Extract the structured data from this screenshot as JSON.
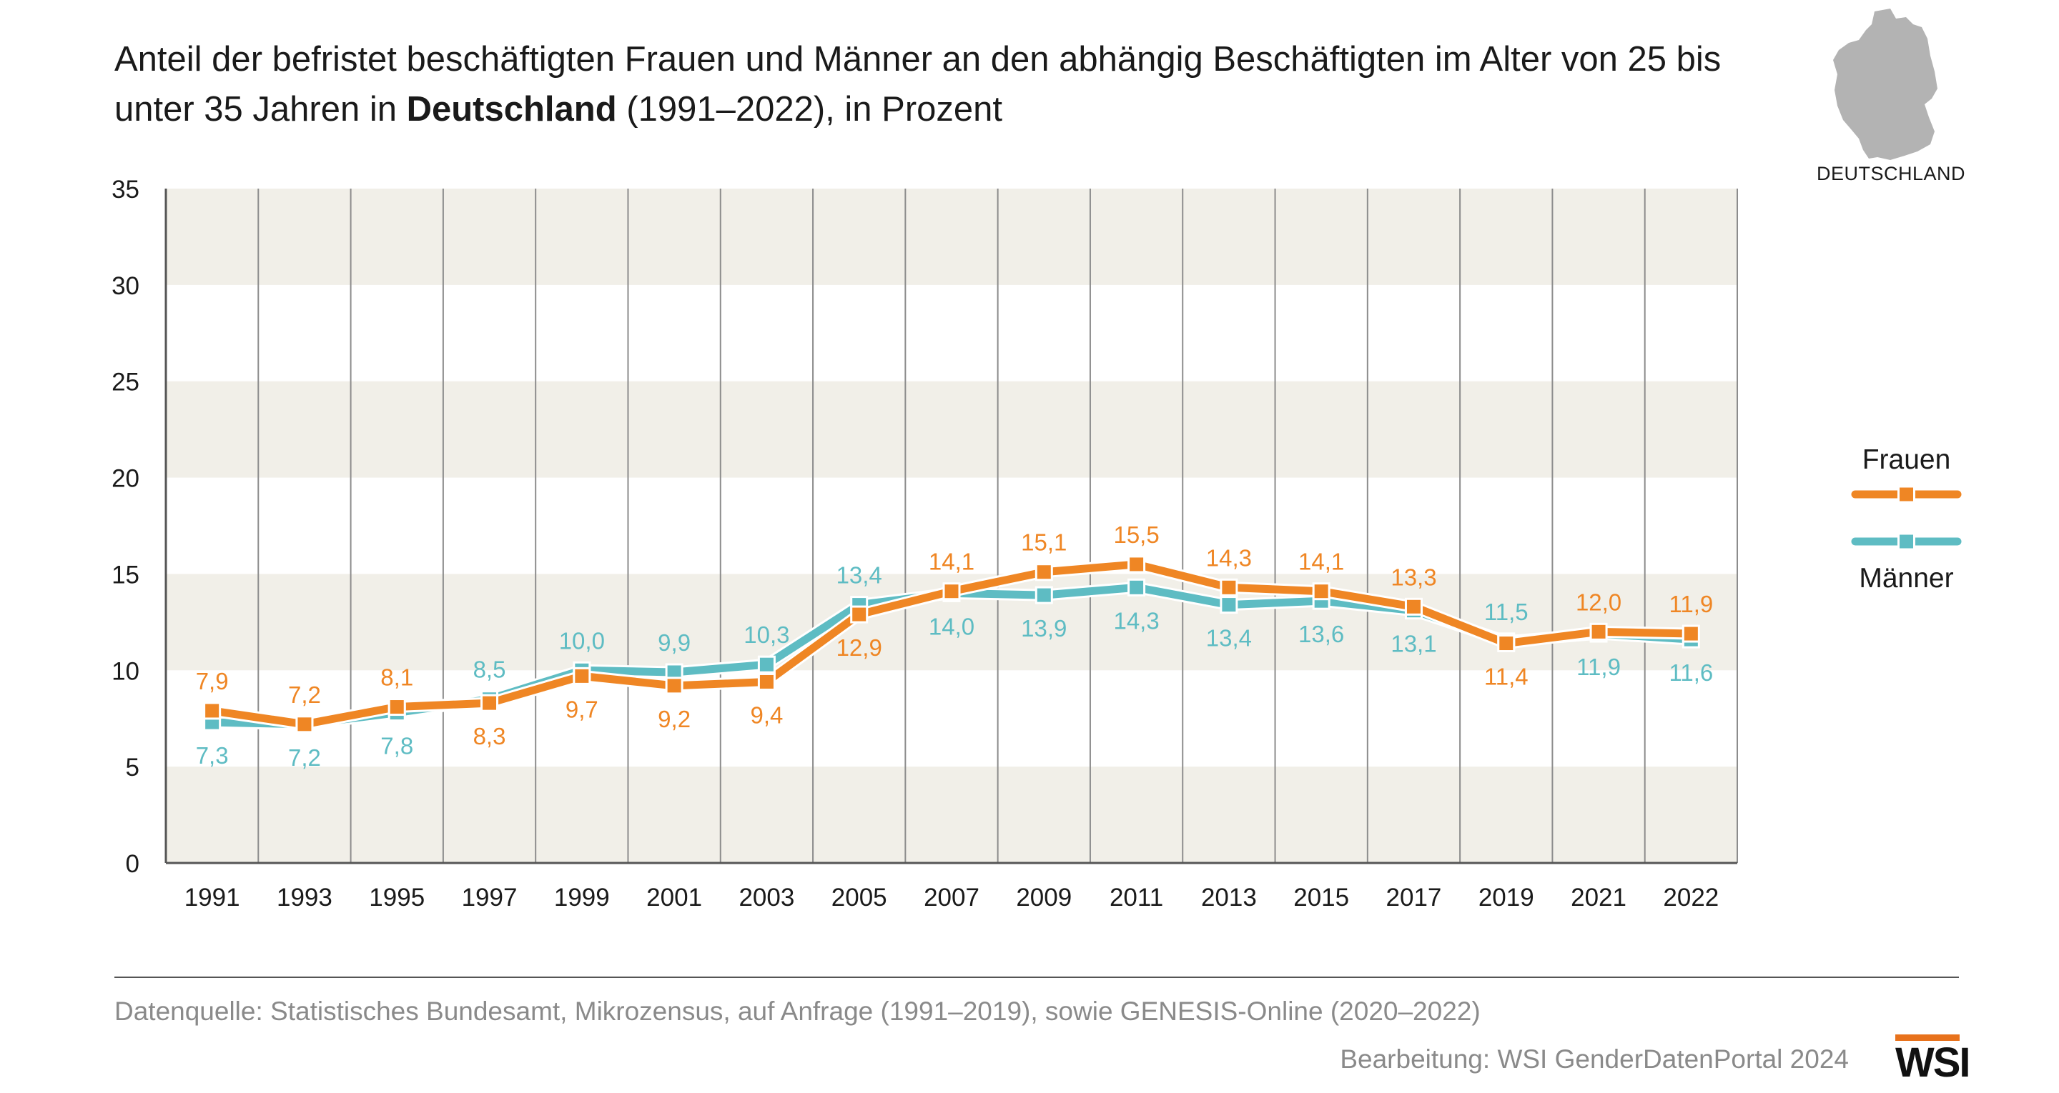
{
  "title_part1": "Anteil der befristet beschäftigten Frauen und Männer an den abhängig Beschäftigten im Alter von 25 bis unter 35 Jahren in ",
  "title_bold": "Deutschland",
  "title_part2": " (1991–2022), in Prozent",
  "map_label": "DEUTSCHLAND",
  "map_icon": "germany-map-icon",
  "source_text": "Datenquelle: Statistisches Bundesamt, Mikrozensus, auf Anfrage (1991–2019), sowie GENESIS-Online (2020–2022)",
  "credit_text": "Bearbeitung: WSI GenderDatenPortal 2024",
  "logo_text": "WSI",
  "colors": {
    "frauen": "#ef8624",
    "maenner": "#5ebcc3",
    "band": "#f1efe8",
    "grid": "#8c8c8c",
    "axis": "#555555",
    "logo_bar": "#e8721c"
  },
  "chart_data": {
    "type": "line",
    "x": [
      "1991",
      "1993",
      "1995",
      "1997",
      "1999",
      "2001",
      "2003",
      "2005",
      "2007",
      "2009",
      "2011",
      "2013",
      "2015",
      "2017",
      "2019",
      "2021",
      "2022"
    ],
    "ylim": [
      0,
      35
    ],
    "yticks": [
      "0",
      "5",
      "10",
      "15",
      "20",
      "25",
      "30",
      "35"
    ],
    "legend_position": "right",
    "series": [
      {
        "name": "Frauen",
        "color": "#ef8624",
        "values": [
          7.9,
          7.2,
          8.1,
          8.3,
          9.7,
          9.2,
          9.4,
          12.9,
          14.1,
          15.1,
          15.5,
          14.3,
          14.1,
          13.3,
          11.4,
          12.0,
          11.9
        ],
        "labels": [
          "7,9",
          "7,2",
          "8,1",
          "8,3",
          "9,7",
          "9,2",
          "9,4",
          "12,9",
          "14,1",
          "15,1",
          "15,5",
          "14,3",
          "14,1",
          "13,3",
          "11,4",
          "12,0",
          "11,9"
        ]
      },
      {
        "name": "Männer",
        "color": "#5ebcc3",
        "values": [
          7.3,
          7.2,
          7.8,
          8.5,
          10.0,
          9.9,
          10.3,
          13.4,
          14.0,
          13.9,
          14.3,
          13.4,
          13.6,
          13.1,
          11.5,
          11.9,
          11.6
        ],
        "labels": [
          "7,3",
          "7,2",
          "7,8",
          "8,5",
          "10,0",
          "9,9",
          "10,3",
          "13,4",
          "14,0",
          "13,9",
          "14,3",
          "13,4",
          "13,6",
          "13,1",
          "11,5",
          "11,9",
          "11,6"
        ]
      }
    ]
  }
}
